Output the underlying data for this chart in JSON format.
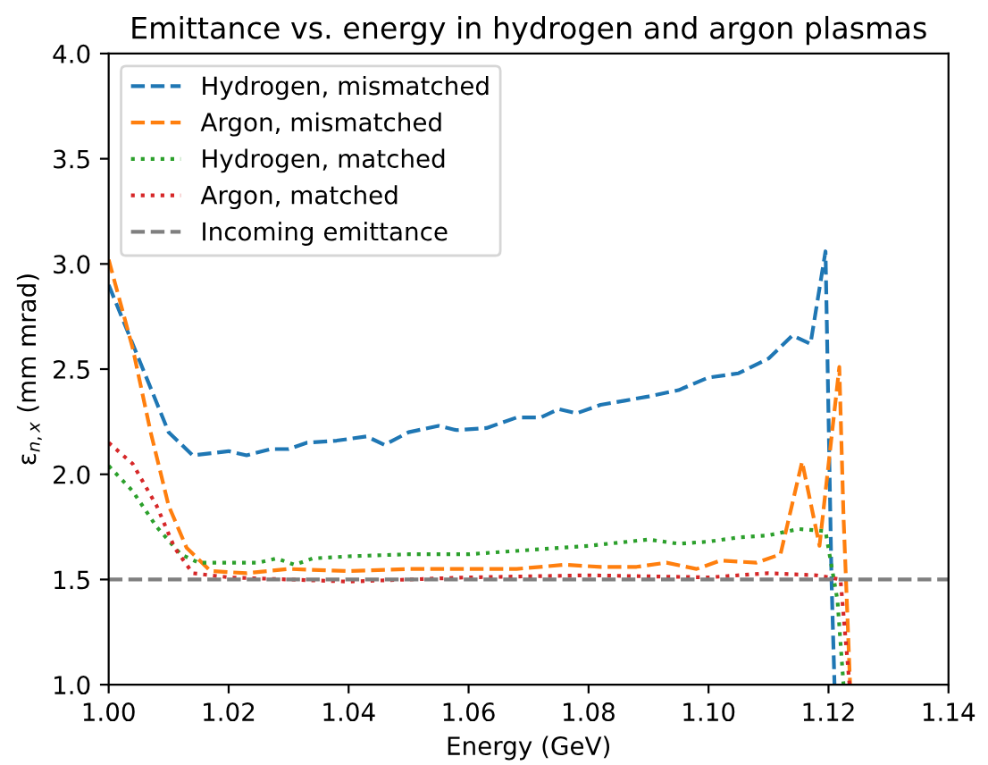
{
  "chart_data": {
    "type": "line",
    "title": "Emittance vs. energy in hydrogen and argon plasmas",
    "xlabel": "Energy (GeV)",
    "ylabel": "ε$_{n,x}$ (mm mrad)",
    "xlim": [
      1.0,
      1.14
    ],
    "xticks": [
      {
        "value": 1.0,
        "label": "1.00"
      },
      {
        "value": 1.02,
        "label": "1.02"
      },
      {
        "value": 1.04,
        "label": "1.04"
      },
      {
        "value": 1.06,
        "label": "1.06"
      },
      {
        "value": 1.08,
        "label": "1.08"
      },
      {
        "value": 1.1,
        "label": "1.10"
      },
      {
        "value": 1.12,
        "label": "1.12"
      },
      {
        "value": 1.14,
        "label": "1.14"
      }
    ],
    "ylim": [
      1.0,
      4.0
    ],
    "yticks": [
      {
        "value": 1.0,
        "label": "1.0"
      },
      {
        "value": 1.5,
        "label": "1.5"
      },
      {
        "value": 2.0,
        "label": "2.0"
      },
      {
        "value": 2.5,
        "label": "2.5"
      },
      {
        "value": 3.0,
        "label": "3.0"
      },
      {
        "value": 3.5,
        "label": "3.5"
      },
      {
        "value": 4.0,
        "label": "4.0"
      }
    ],
    "grid": false,
    "legend": "top left",
    "series": [
      {
        "name": "Hydrogen, mismatched",
        "color": "#1f77b4",
        "line_style": "dashed",
        "x": [
          1.0,
          1.005,
          1.01,
          1.014,
          1.02,
          1.023,
          1.027,
          1.03,
          1.033,
          1.038,
          1.043,
          1.046,
          1.05,
          1.055,
          1.058,
          1.063,
          1.068,
          1.072,
          1.075,
          1.078,
          1.082,
          1.086,
          1.09,
          1.095,
          1.1,
          1.105,
          1.11,
          1.114,
          1.117,
          1.1195,
          1.1205,
          1.121
        ],
        "values": [
          2.9,
          2.55,
          2.2,
          2.09,
          2.11,
          2.09,
          2.12,
          2.12,
          2.15,
          2.16,
          2.18,
          2.14,
          2.2,
          2.23,
          2.21,
          2.22,
          2.27,
          2.27,
          2.31,
          2.29,
          2.33,
          2.35,
          2.37,
          2.4,
          2.46,
          2.48,
          2.55,
          2.66,
          2.62,
          3.06,
          1.5,
          1.0
        ]
      },
      {
        "name": "Argon, mismatched",
        "color": "#ff7f0e",
        "line_style": "dashed",
        "x": [
          1.0,
          1.004,
          1.007,
          1.01,
          1.013,
          1.017,
          1.023,
          1.03,
          1.04,
          1.05,
          1.06,
          1.068,
          1.076,
          1.082,
          1.088,
          1.093,
          1.098,
          1.102,
          1.108,
          1.112,
          1.1156,
          1.1185,
          1.1218,
          1.1225,
          1.1236
        ],
        "values": [
          3.02,
          2.6,
          2.2,
          1.85,
          1.65,
          1.54,
          1.53,
          1.55,
          1.54,
          1.55,
          1.55,
          1.55,
          1.57,
          1.56,
          1.56,
          1.58,
          1.55,
          1.59,
          1.58,
          1.62,
          2.06,
          1.66,
          2.51,
          1.8,
          1.0
        ]
      },
      {
        "name": "Hydrogen, matched",
        "color": "#2ca02c",
        "line_style": "dotted",
        "x": [
          1.0,
          1.004,
          1.008,
          1.012,
          1.015,
          1.02,
          1.025,
          1.028,
          1.031,
          1.034,
          1.04,
          1.05,
          1.06,
          1.07,
          1.08,
          1.09,
          1.095,
          1.1,
          1.105,
          1.11,
          1.115,
          1.1195,
          1.1215,
          1.1225
        ],
        "values": [
          2.04,
          1.92,
          1.75,
          1.62,
          1.58,
          1.58,
          1.58,
          1.6,
          1.57,
          1.6,
          1.61,
          1.62,
          1.62,
          1.64,
          1.66,
          1.69,
          1.67,
          1.68,
          1.7,
          1.71,
          1.74,
          1.73,
          1.4,
          1.0
        ]
      },
      {
        "name": "Argon, matched",
        "color": "#d62728",
        "line_style": "dotted",
        "x": [
          1.0,
          1.004,
          1.008,
          1.011,
          1.014,
          1.02,
          1.04,
          1.06,
          1.08,
          1.1,
          1.11,
          1.118,
          1.122,
          1.1235
        ],
        "values": [
          2.15,
          2.05,
          1.85,
          1.65,
          1.53,
          1.51,
          1.49,
          1.51,
          1.52,
          1.51,
          1.53,
          1.52,
          1.5,
          1.0
        ]
      }
    ],
    "ref_lines": [
      {
        "axis": "y",
        "value": 1.5,
        "label": "Incoming emittance",
        "color": "#7f7f7f",
        "line_style": "dashed"
      }
    ]
  }
}
